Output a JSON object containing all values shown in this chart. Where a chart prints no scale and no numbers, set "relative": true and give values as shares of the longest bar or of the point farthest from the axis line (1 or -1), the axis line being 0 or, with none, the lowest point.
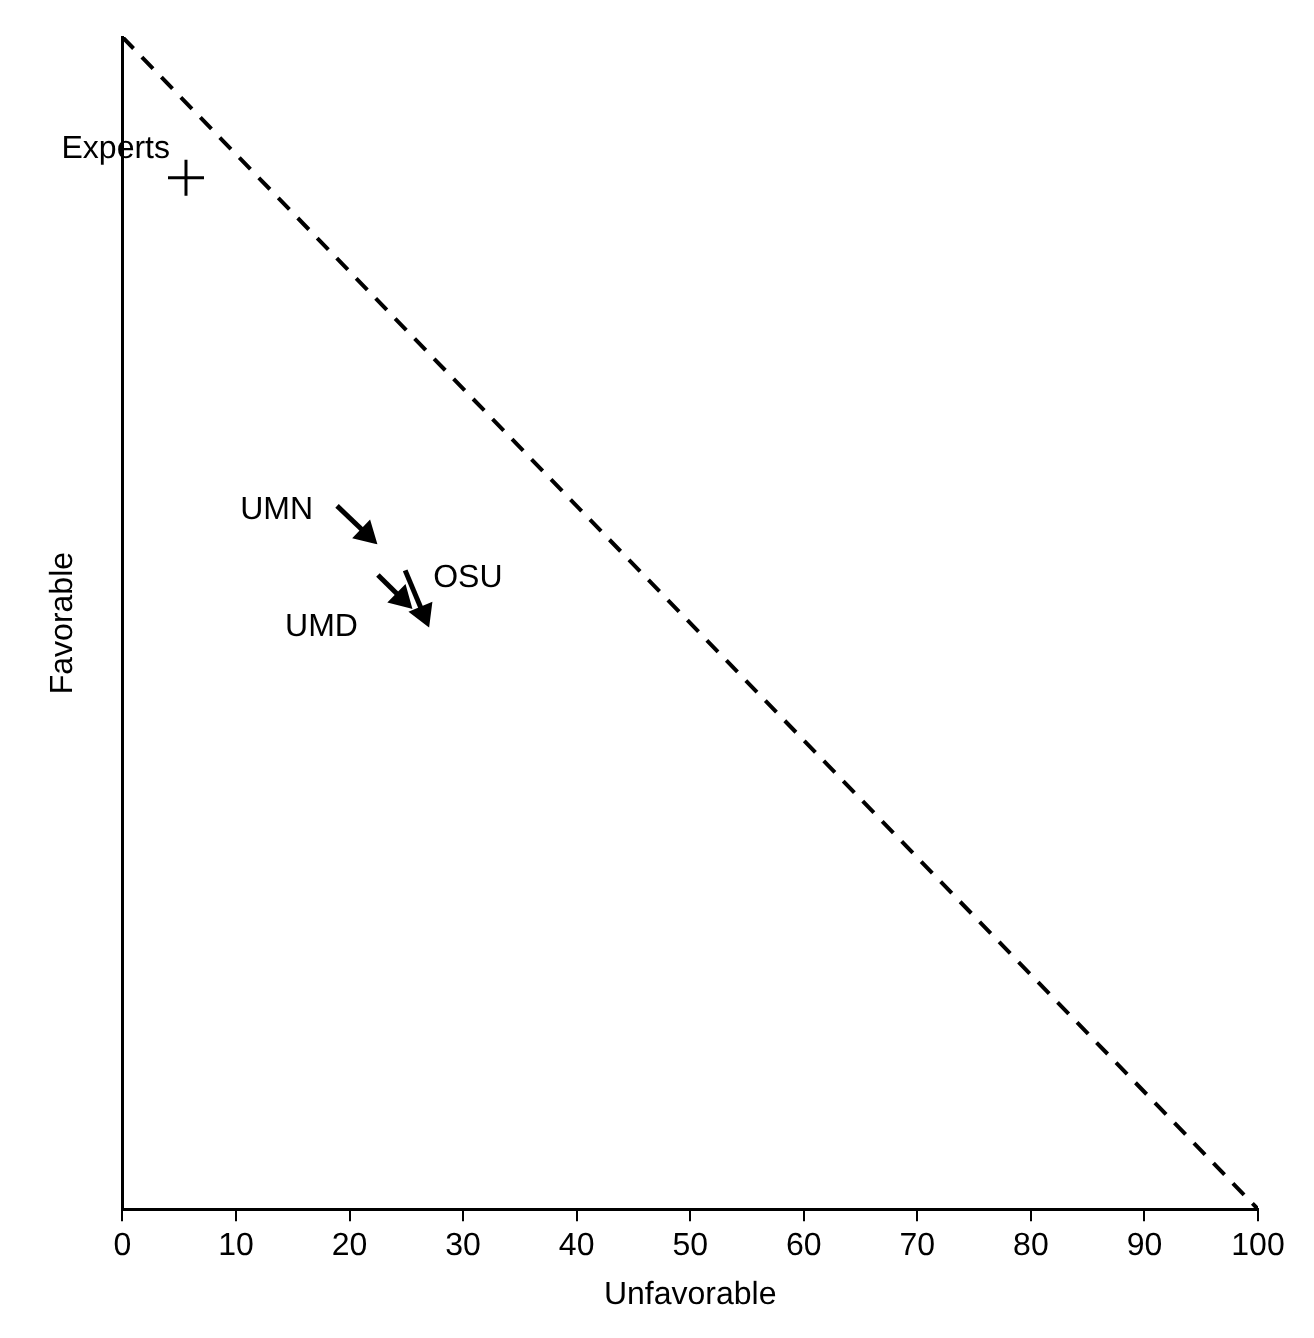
{
  "chart_data": {
    "type": "scatter",
    "xlabel": "Unfavorable",
    "ylabel": "Favorable",
    "xlim": [
      0,
      100
    ],
    "xticks": [
      0,
      10,
      20,
      30,
      40,
      50,
      60,
      70,
      80,
      90,
      100
    ],
    "relative": true,
    "tick_labels": "x",
    "grid": false,
    "series": [
      {
        "type": "line",
        "x": [
          0,
          100
        ],
        "values": [
          1,
          0
        ],
        "color": "#000000",
        "line_style": "dashed",
        "marker": "none"
      },
      {
        "name": "Experts",
        "x": [
          5.6
        ],
        "values": [
          0.88
        ],
        "color": "#000000",
        "marker": "cross"
      },
      {
        "type": "line",
        "name": "UMN",
        "x": [
          18.9,
          21.5
        ],
        "values": [
          0.6,
          0.576
        ],
        "color": "#000000",
        "line_style": "solid",
        "marker": "triangle"
      },
      {
        "type": "line",
        "name": "UMD",
        "x": [
          22.5,
          24.6
        ],
        "values": [
          0.541,
          0.521
        ],
        "color": "#000000",
        "line_style": "solid",
        "marker": "triangle"
      },
      {
        "type": "line",
        "name": "OSU",
        "x": [
          24.9,
          26.5
        ],
        "values": [
          0.545,
          0.508
        ],
        "color": "#000000",
        "line_style": "solid",
        "marker": "triangle"
      }
    ]
  }
}
